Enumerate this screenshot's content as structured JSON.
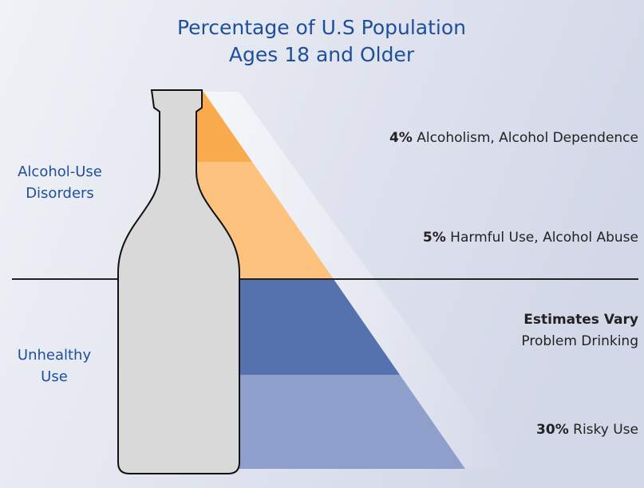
{
  "title": [
    "Percentage of U.S Population",
    "Ages 18 and Older"
  ],
  "groups": [
    {
      "label": [
        "Alcohol-Use",
        "Disorders"
      ]
    },
    {
      "label": [
        "Unhealthy",
        "Use"
      ]
    }
  ],
  "tiers": [
    {
      "figure": "4%",
      "label": "Alcoholism, Alcohol Dependence"
    },
    {
      "figure": "5%",
      "label": "Harmful Use, Alcohol Abuse"
    },
    {
      "figure": "Estimates Vary",
      "label": "Problem Drinking"
    },
    {
      "figure": "30%",
      "label": "Risky Use"
    }
  ]
}
